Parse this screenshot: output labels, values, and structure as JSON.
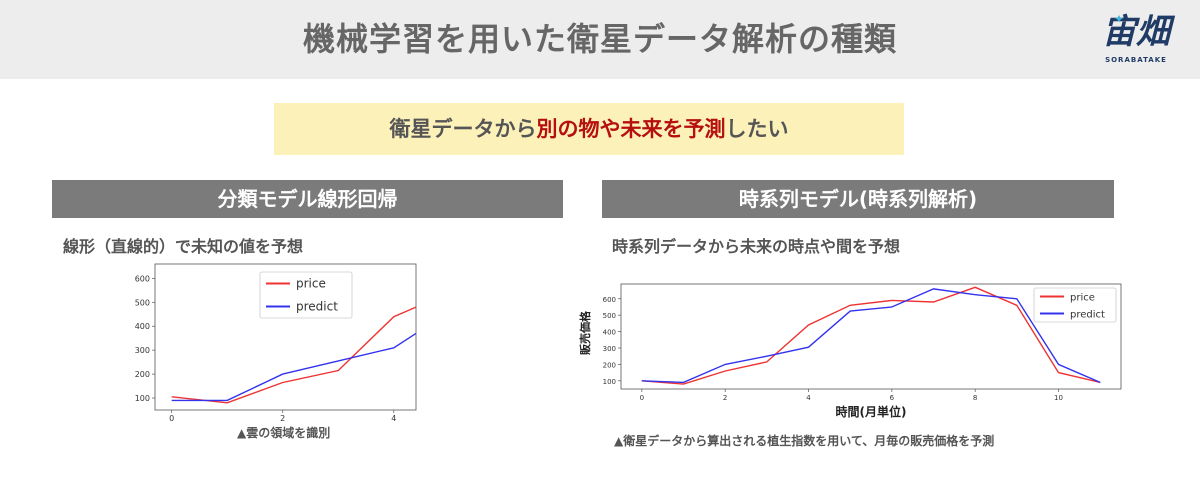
{
  "title": "機械学習を用いた衛星データ解析の種類",
  "logo": {
    "mark": "宙畑",
    "sub": "SORABATAKE"
  },
  "banner": {
    "pre": "衛星データから",
    "highlight": "別の物や未来を予測",
    "post": "したい"
  },
  "left": {
    "heading": "分類モデル線形回帰",
    "subtitle": "線形（直線的）で未知の値を予想",
    "caption": "▲雲の領域を識別"
  },
  "right": {
    "heading": "時系列モデル(時系列解析)",
    "subtitle": "時系列データから未来の時点や間を予想",
    "caption": "▲衛星データから算出される植生指数を用いて、月毎の販売価格を予測"
  },
  "colors": {
    "price": "#ee3333",
    "predict": "#3333ee",
    "header_bg": "#ededed",
    "section_bg": "#7b7b7b",
    "banner_bg": "#fdf1ba",
    "highlight": "#b50f0f"
  },
  "chart_data": [
    {
      "type": "line",
      "x": [
        0,
        1,
        2,
        3,
        4,
        4.4
      ],
      "series": [
        {
          "name": "price",
          "values": [
            105,
            80,
            165,
            215,
            440,
            480
          ]
        },
        {
          "name": "predict",
          "values": [
            90,
            90,
            200,
            255,
            310,
            370
          ]
        }
      ],
      "xticks": [
        0,
        2,
        4
      ],
      "yticks": [
        100,
        200,
        300,
        400,
        500,
        600
      ],
      "xlim": [
        -0.3,
        4.4
      ],
      "ylim": [
        50,
        660
      ],
      "legend": "top-center",
      "xlabel": "",
      "ylabel": ""
    },
    {
      "type": "line",
      "x": [
        0,
        1,
        2,
        3,
        4,
        5,
        6,
        7,
        8,
        9,
        10,
        11
      ],
      "series": [
        {
          "name": "price",
          "values": [
            100,
            80,
            160,
            215,
            440,
            560,
            590,
            580,
            670,
            560,
            150,
            90
          ]
        },
        {
          "name": "predict",
          "values": [
            100,
            90,
            200,
            250,
            305,
            525,
            550,
            660,
            625,
            600,
            200,
            90
          ]
        }
      ],
      "xticks": [
        0,
        2,
        4,
        6,
        8,
        10
      ],
      "yticks": [
        100,
        200,
        300,
        400,
        500,
        600
      ],
      "xlim": [
        -0.5,
        11.5
      ],
      "ylim": [
        50,
        690
      ],
      "legend": "top-right",
      "xlabel": "時間(月単位)",
      "ylabel": "販売価格"
    }
  ]
}
